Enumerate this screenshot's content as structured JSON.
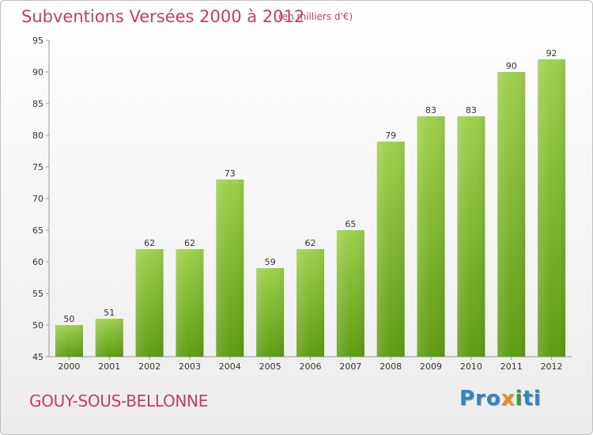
{
  "header": {
    "title": "Subventions Versées 2000 à 2012",
    "subtitle": "(en milliers d'€)"
  },
  "footer": {
    "town": "GOUY-SOUS-BELLONNE",
    "logo_parts": [
      "Pro",
      "x",
      "i",
      "ti"
    ]
  },
  "colors": {
    "accent": "#c43c6a",
    "bar_light": "#9ed04c",
    "bar_dark": "#5e9c12",
    "axis": "#999999"
  },
  "chart_data": {
    "type": "bar",
    "title": "Subventions Versées 2000 à 2012",
    "subtitle": "(en milliers d'€)",
    "xlabel": "",
    "ylabel": "",
    "categories": [
      "2000",
      "2001",
      "2002",
      "2003",
      "2004",
      "2005",
      "2006",
      "2007",
      "2008",
      "2009",
      "2010",
      "2011",
      "2012"
    ],
    "values": [
      50,
      51,
      62,
      62,
      73,
      59,
      62,
      65,
      79,
      83,
      83,
      90,
      92
    ],
    "ylim": [
      45,
      95
    ],
    "yticks": [
      45,
      50,
      55,
      60,
      65,
      70,
      75,
      80,
      85,
      90,
      95
    ],
    "grid": false,
    "legend": "none"
  }
}
